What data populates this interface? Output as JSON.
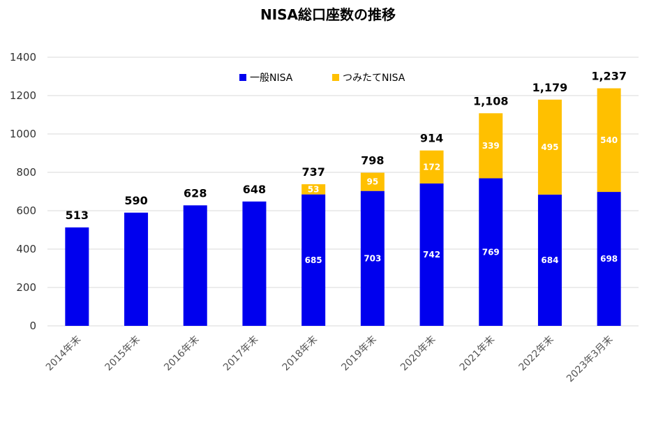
{
  "chart_data": {
    "type": "bar",
    "stacked": true,
    "title": "NISA総口座数の推移",
    "categories": [
      "2014年末",
      "2015年末",
      "2016年末",
      "2017年末",
      "2018年末",
      "2019年末",
      "2020年末",
      "2021年末",
      "2022年末",
      "2023年3月末"
    ],
    "series": [
      {
        "name": "一般NISA",
        "color": "#0000ee",
        "values": [
          513,
          590,
          628,
          648,
          685,
          703,
          742,
          769,
          684,
          698
        ],
        "show_labels": [
          false,
          false,
          false,
          false,
          true,
          true,
          true,
          true,
          true,
          true
        ]
      },
      {
        "name": "つみたてNISA",
        "color": "#ffc000",
        "values": [
          0,
          0,
          0,
          0,
          53,
          95,
          172,
          339,
          495,
          540
        ],
        "show_labels": [
          false,
          false,
          false,
          false,
          true,
          true,
          true,
          true,
          true,
          true
        ]
      }
    ],
    "totals": [
      "513",
      "590",
      "628",
      "648",
      "737",
      "798",
      "914",
      "1,108",
      "1,179",
      "1,237"
    ],
    "highlight_total_index": 9,
    "highlight_color": "#ff0000",
    "ylim": [
      0,
      1400
    ],
    "yticks": [
      0,
      200,
      400,
      600,
      800,
      1000,
      1200,
      1400
    ],
    "grid": true,
    "legend_position": "top-center"
  }
}
